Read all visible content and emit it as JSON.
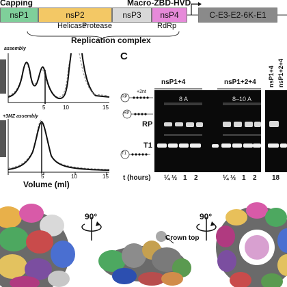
{
  "genome": {
    "capping_label": "Capping",
    "macro_label": "Macro-ZBD-HVD",
    "segments": [
      {
        "label": "nsP1",
        "color": "#7fcf9a"
      },
      {
        "label": "nsP2",
        "color": "#f3c865"
      },
      {
        "label": "nsP3",
        "color": "#d8d8d8"
      },
      {
        "label": "nsP4",
        "color": "#e68ad9"
      }
    ],
    "structural_label": "C-E3-E2-6K-E1",
    "helicase_label": "Helicase",
    "protease_label": "Protease",
    "rdrp_label": "RdRp",
    "complex_label": "Replication complex"
  },
  "panel_b": {
    "top_caption": "assembly",
    "bottom_caption": "+3MZ assembly",
    "xlabel": "Volume (ml)",
    "ticks": [
      "5",
      "10",
      "15"
    ]
  },
  "panel_c": {
    "panel_letter": "C",
    "group1": "nsP1+4",
    "group2": "nsP1+2+4",
    "group3_a": "nsP1+4",
    "group3_b": "nsP1+2+4",
    "lane1_temp": "8 A",
    "lane2_temp": "8–10 A",
    "rp_label": "RP",
    "t1_label": "T1",
    "rp_schematic": "RP",
    "t1_schematic": "T1",
    "plus2nt": "+2nt",
    "time_label": "t (hours)",
    "times1": [
      "¼",
      "½",
      "1",
      "2"
    ],
    "times2": [
      "¼",
      "½",
      "1",
      "2"
    ],
    "times3": "18"
  },
  "panel_d": {
    "rotate1": "90°",
    "rotate2": "90°",
    "crown_label": "Crown top"
  }
}
